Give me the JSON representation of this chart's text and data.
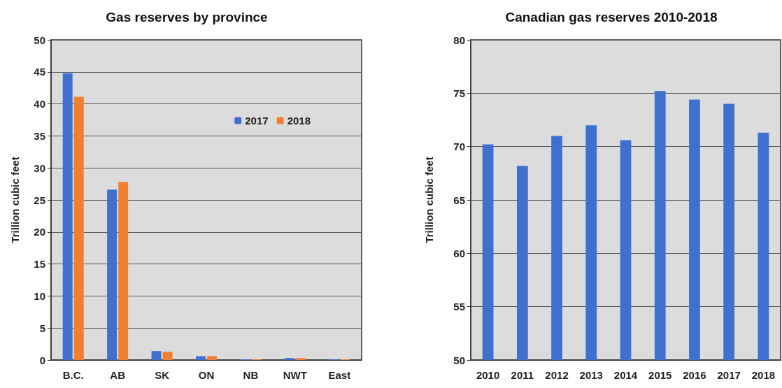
{
  "chart_data": [
    {
      "type": "bar",
      "title": "Gas reserves by province",
      "ylabel": "Trillion cubic feet",
      "categories": [
        "B.C.",
        "AB",
        "SK",
        "ON",
        "NB",
        "NWT",
        "East"
      ],
      "series": [
        {
          "name": "2017",
          "color": "#3f6fcf",
          "values": [
            44.8,
            26.6,
            1.4,
            0.6,
            0.1,
            0.3,
            0.1
          ]
        },
        {
          "name": "2018",
          "color": "#ef7f33",
          "values": [
            41.1,
            27.8,
            1.3,
            0.6,
            0.1,
            0.3,
            0.1
          ]
        }
      ],
      "ylim": [
        0,
        50
      ],
      "yticks": [
        0,
        5,
        10,
        15,
        20,
        25,
        30,
        35,
        40,
        45,
        50
      ],
      "grid": "y",
      "legend": "top right"
    },
    {
      "type": "bar",
      "title": "Canadian gas reserves 2010-2018",
      "ylabel": "Trillion cubic feet",
      "categories": [
        "2010",
        "2011",
        "2012",
        "2013",
        "2014",
        "2015",
        "2016",
        "2017",
        "2018"
      ],
      "series": [
        {
          "color": "#3f6fcf",
          "values": [
            70.2,
            68.2,
            71.0,
            72.0,
            70.6,
            75.2,
            74.4,
            74.0,
            71.3
          ]
        }
      ],
      "ylim": [
        50,
        80
      ],
      "yticks": [
        50,
        55,
        60,
        65,
        70,
        75,
        80
      ],
      "grid": "y"
    }
  ]
}
